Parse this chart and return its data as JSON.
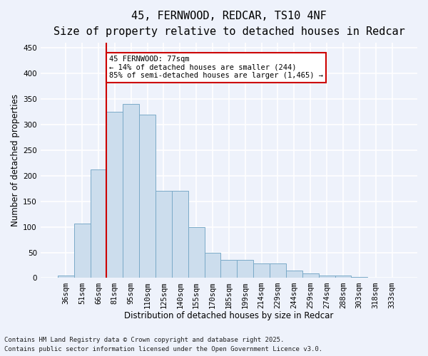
{
  "title_line1": "45, FERNWOOD, REDCAR, TS10 4NF",
  "title_line2": "Size of property relative to detached houses in Redcar",
  "xlabel": "Distribution of detached houses by size in Redcar",
  "ylabel": "Number of detached properties",
  "bar_color": "#ccdded",
  "bar_edge_color": "#7aaac8",
  "categories": [
    "36sqm",
    "51sqm",
    "66sqm",
    "81sqm",
    "95sqm",
    "110sqm",
    "125sqm",
    "140sqm",
    "155sqm",
    "170sqm",
    "185sqm",
    "199sqm",
    "214sqm",
    "229sqm",
    "244sqm",
    "259sqm",
    "274sqm",
    "288sqm",
    "303sqm",
    "318sqm",
    "333sqm"
  ],
  "values": [
    5,
    107,
    212,
    325,
    340,
    320,
    170,
    170,
    100,
    50,
    35,
    35,
    29,
    29,
    14,
    9,
    5,
    5,
    2,
    1,
    1
  ],
  "ylim": [
    0,
    460
  ],
  "yticks": [
    0,
    50,
    100,
    150,
    200,
    250,
    300,
    350,
    400,
    450
  ],
  "vline_bar_index": 3,
  "annotation_text": "45 FERNWOOD: 77sqm\n← 14% of detached houses are smaller (244)\n85% of semi-detached houses are larger (1,465) →",
  "annotation_box_color": "#ffffff",
  "annotation_box_edge": "#cc0000",
  "vline_color": "#cc0000",
  "background_color": "#eef2fb",
  "grid_color": "#ffffff",
  "footer_line1": "Contains HM Land Registry data © Crown copyright and database right 2025.",
  "footer_line2": "Contains public sector information licensed under the Open Government Licence v3.0.",
  "title_fontsize": 11,
  "title2_fontsize": 10,
  "axis_label_fontsize": 8.5,
  "tick_fontsize": 7.5,
  "footer_fontsize": 6.5,
  "annot_fontsize": 7.5
}
